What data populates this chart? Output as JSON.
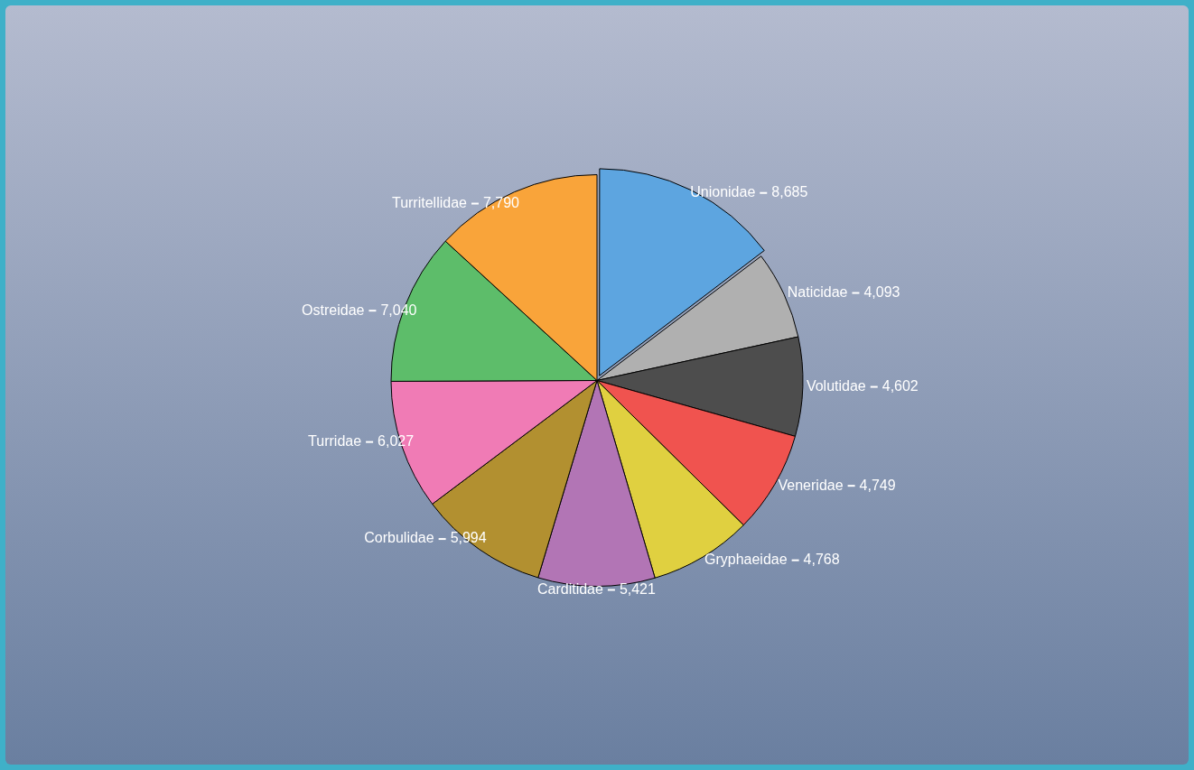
{
  "chart_data": {
    "type": "pie",
    "categories": [
      "Unionidae",
      "Naticidae",
      "Volutidae",
      "Veneridae",
      "Gryphaeidae",
      "Carditidae",
      "Corbulidae",
      "Turridae",
      "Ostreidae",
      "Turritellidae"
    ],
    "values": [
      8685,
      4093,
      4602,
      4749,
      4768,
      5421,
      5994,
      6027,
      7040,
      7790
    ],
    "colors": [
      "#5da5e0",
      "#b0b0b0",
      "#4d4d4d",
      "#f0534f",
      "#e0d040",
      "#b275b5",
      "#b29030",
      "#f07bb5",
      "#5dbd6a",
      "#f9a43a"
    ],
    "value_labels": [
      "8,685",
      "4,093",
      "4,602",
      "4,749",
      "4,768",
      "5,421",
      "5,994",
      "6,027",
      "7,040",
      "7,790"
    ],
    "legend": false
  }
}
